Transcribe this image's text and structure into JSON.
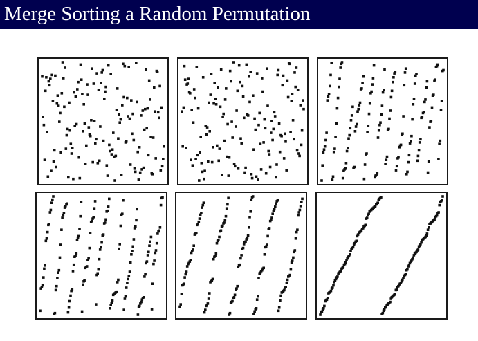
{
  "title": "Merge Sorting a Random Permutation",
  "colors": {
    "title_bar": "#00004f",
    "title_text": "#ffffff",
    "dots": "#111111",
    "panel_border": "#1a1a1a"
  },
  "chart_data": {
    "type": "scatter",
    "title": "Merge Sorting a Random Permutation",
    "xlabel": "",
    "ylabel": "",
    "grid": false,
    "panels": [
      {
        "stage": 1,
        "sorted_runs": 0,
        "points": 150
      },
      {
        "stage": 2,
        "sorted_runs": 0,
        "points": 150
      },
      {
        "stage": 3,
        "sorted_runs": 12,
        "points": 150
      },
      {
        "stage": 4,
        "sorted_runs": 9,
        "points": 150
      },
      {
        "stage": 5,
        "sorted_runs": 5,
        "points": 150
      },
      {
        "stage": 6,
        "sorted_runs": 2,
        "points": 150
      }
    ]
  }
}
